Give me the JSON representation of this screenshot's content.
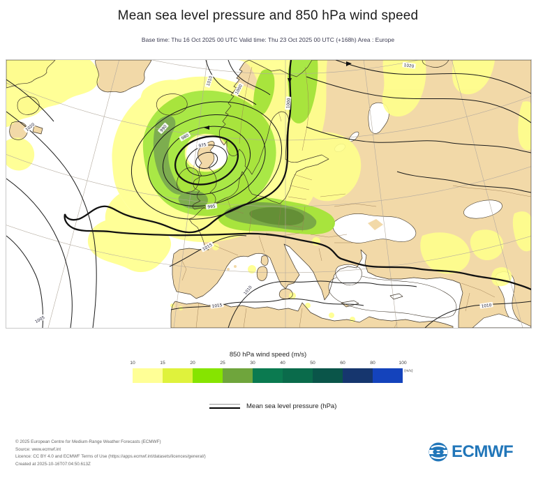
{
  "header": {
    "title": "Mean sea level pressure and 850 hPa wind speed",
    "subtitle": "Base time: Thu 16 Oct 2025 00 UTC Valid time: Thu 23 Oct 2025 00 UTC (+168h) Area : Europe"
  },
  "map": {
    "contour_labels": [
      "1020",
      "1010",
      "1000",
      "1020",
      "975",
      "980",
      "990",
      "995",
      "1000",
      "1005",
      "1015",
      "1010",
      "1015",
      "1010"
    ],
    "land_color": "#f2d9a8",
    "sea_color": "#ffffff",
    "shade_yellow": "#ffff8c",
    "shade_green": "#a0e632",
    "shade_olive": "#6fa53c",
    "shade_dark_olive": "#55882a"
  },
  "legend": {
    "title": "850 hPa wind speed (m/s)",
    "unit_note": "(m/s)",
    "ticks": [
      "10",
      "15",
      "20",
      "25",
      "30",
      "40",
      "50",
      "60",
      "80",
      "100"
    ],
    "colors": [
      "#ffff96",
      "#dff23c",
      "#86e400",
      "#6fa53c",
      "#0b7a50",
      "#0a6b4b",
      "#0a5549",
      "#16366e",
      "#1443bc"
    ],
    "mslp_label": "Mean sea level pressure (hPa)"
  },
  "footer": {
    "lines": [
      "© 2025 European Centre for Medium-Range Weather Forecasts (ECMWF)",
      "Source: www.ecmwf.int",
      "Licence: CC BY 4.0 and ECMWF Terms of Use (https://apps.ecmwf.int/datasets/licences/general/)",
      "Created at 2025-10-16T07:04:50.613Z"
    ],
    "logo_text": "ECMWF",
    "logo_color": "#2176b9"
  },
  "chart_data": {
    "type": "heatmap",
    "title": "Mean sea level pressure and 850 hPa wind speed",
    "base_time": "Thu 16 Oct 2025 00 UTC",
    "valid_time": "Thu 23 Oct 2025 00 UTC",
    "lead_time": "+168h",
    "area": "Europe",
    "colorbar": {
      "label": "850 hPa wind speed (m/s)",
      "units": "m/s",
      "boundaries": [
        10,
        15,
        20,
        25,
        30,
        40,
        50,
        60,
        80,
        100
      ],
      "colors": [
        "#ffff96",
        "#dff23c",
        "#86e400",
        "#6fa53c",
        "#0b7a50",
        "#0a6b4b",
        "#0a5549",
        "#16366e",
        "#1443bc"
      ]
    },
    "contour_field": {
      "label": "Mean sea level pressure (hPa)",
      "units": "hPa",
      "labeled_levels": [
        975,
        980,
        990,
        995,
        1000,
        1005,
        1010,
        1015,
        1020
      ]
    },
    "features": [
      {
        "type": "low",
        "approx_location": "British Isles / NE Atlantic",
        "central_pressure_hpa": 975
      },
      {
        "type": "high",
        "approx_location": "western Atlantic",
        "pressure_hpa": 1020
      },
      {
        "type": "wind_maximum",
        "approx_location": "around the low, English Channel to Germany",
        "shading_range_m_s": "10-30"
      }
    ]
  }
}
